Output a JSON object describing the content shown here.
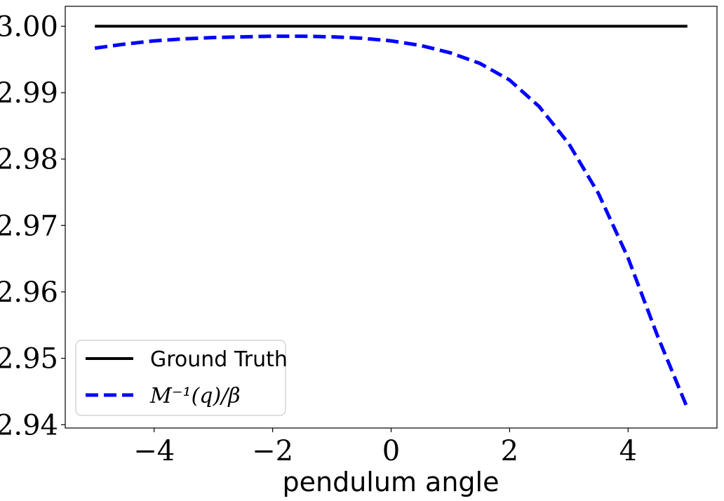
{
  "chart_data": {
    "type": "line",
    "title": "",
    "xlabel": "pendulum angle",
    "ylabel": "",
    "xlim": [
      -5.5,
      5.5
    ],
    "ylim": [
      2.9395,
      3.003
    ],
    "grid": false,
    "legend_position": "lower-left",
    "x_ticks": [
      -4,
      -2,
      0,
      2,
      4
    ],
    "x_tick_labels": [
      "−4",
      "−2",
      "0",
      "2",
      "4"
    ],
    "y_ticks": [
      2.94,
      2.95,
      2.96,
      2.97,
      2.98,
      2.99,
      3.0
    ],
    "y_tick_labels": [
      "2.94",
      "2.95",
      "2.96",
      "2.97",
      "2.98",
      "2.99",
      "3.00"
    ],
    "series": [
      {
        "name": "Ground Truth",
        "color": "#000000",
        "style": "solid",
        "x": [
          -5,
          5
        ],
        "y": [
          3.0,
          3.0
        ]
      },
      {
        "name": "M⁻¹(q)/β",
        "color": "#0000ff",
        "style": "dashed",
        "x": [
          -5,
          -4.5,
          -4,
          -3.5,
          -3,
          -2.5,
          -2,
          -1.5,
          -1,
          -0.5,
          0,
          0.5,
          1,
          1.5,
          2,
          2.5,
          3,
          3.5,
          4,
          4.5,
          5
        ],
        "y": [
          2.9967,
          2.9973,
          2.9978,
          2.9981,
          2.9983,
          2.9984,
          2.9985,
          2.9985,
          2.9984,
          2.9982,
          2.9978,
          2.9971,
          2.996,
          2.9944,
          2.9919,
          2.9879,
          2.9823,
          2.9748,
          2.9651,
          2.9533,
          2.9425
        ]
      }
    ]
  }
}
